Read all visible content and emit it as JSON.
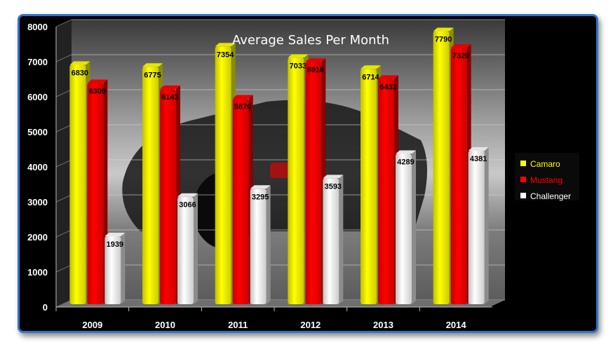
{
  "chart_data": {
    "type": "bar",
    "title": "Average Sales Per Month",
    "categories": [
      "2009",
      "2010",
      "2011",
      "2012",
      "2013",
      "2014"
    ],
    "series": [
      {
        "name": "Camaro",
        "color": "#ffff00",
        "values": [
          6830,
          6775,
          7354,
          7033,
          6714,
          7790
        ]
      },
      {
        "name": "Mustang",
        "color": "#ff0000",
        "values": [
          6309,
          6143,
          5870,
          6916,
          6432,
          7320
        ]
      },
      {
        "name": "Challenger",
        "color": "#ffffff",
        "values": [
          1939,
          3066,
          3295,
          3593,
          4289,
          4381
        ]
      }
    ],
    "ylim": [
      0,
      8000
    ],
    "yticks": [
      0,
      1000,
      2000,
      3000,
      4000,
      5000,
      6000,
      7000,
      8000
    ],
    "grid": true,
    "legend_position": "right",
    "style": "3d-column",
    "background": "dark sports car photo"
  }
}
